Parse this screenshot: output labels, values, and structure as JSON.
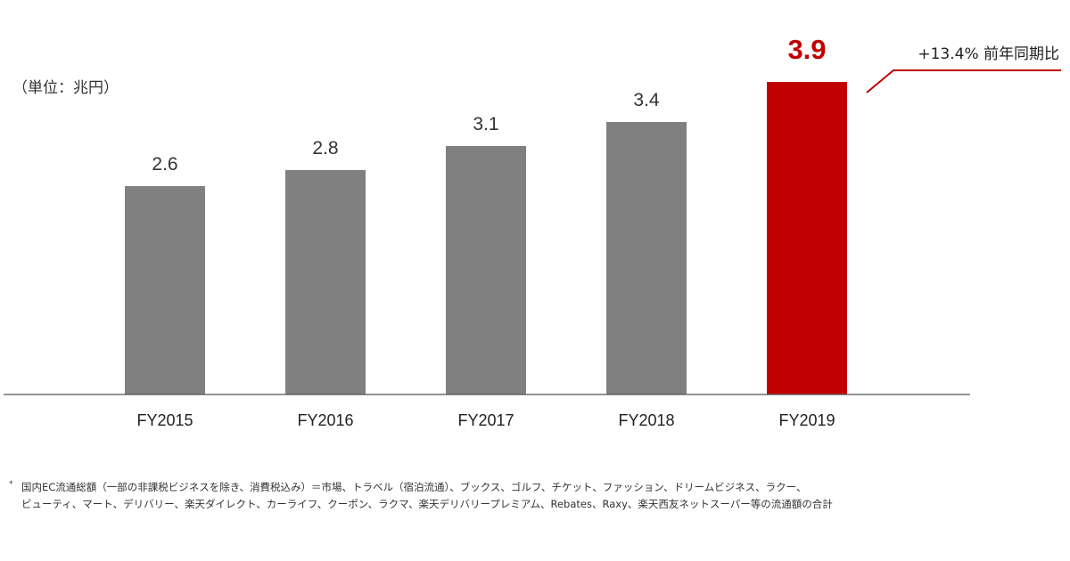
{
  "unit_label": "（単位：兆円）",
  "chart_data": {
    "type": "bar",
    "categories": [
      "FY2015",
      "FY2016",
      "FY2017",
      "FY2018",
      "FY2019"
    ],
    "values": [
      2.6,
      2.8,
      3.1,
      3.4,
      3.9
    ],
    "value_labels": [
      "2.6",
      "2.8",
      "3.1",
      "3.4",
      "3.9"
    ],
    "title": "",
    "xlabel": "",
    "ylabel": "",
    "ylim": [
      0,
      4.2
    ],
    "bar_color": "#808080",
    "highlight_color": "#c00000",
    "highlight_index": 4,
    "annotation": "+13.4% 前年同期比"
  },
  "footnote": {
    "mark": "*",
    "line1": "国内EC流通総額（一部の非課税ビジネスを除き、消費税込み）＝市場、トラベル（宿泊流通）、ブックス、ゴルフ、チケット、ファッション、ドリームビジネス、ラクー、",
    "line2": "ビューティ、マート、デリバリー、楽天ダイレクト、カーライフ、クーポン、ラクマ、楽天デリバリープレミアム、Rebates、Raxy、楽天西友ネットスーパー等の流通額の合計"
  }
}
